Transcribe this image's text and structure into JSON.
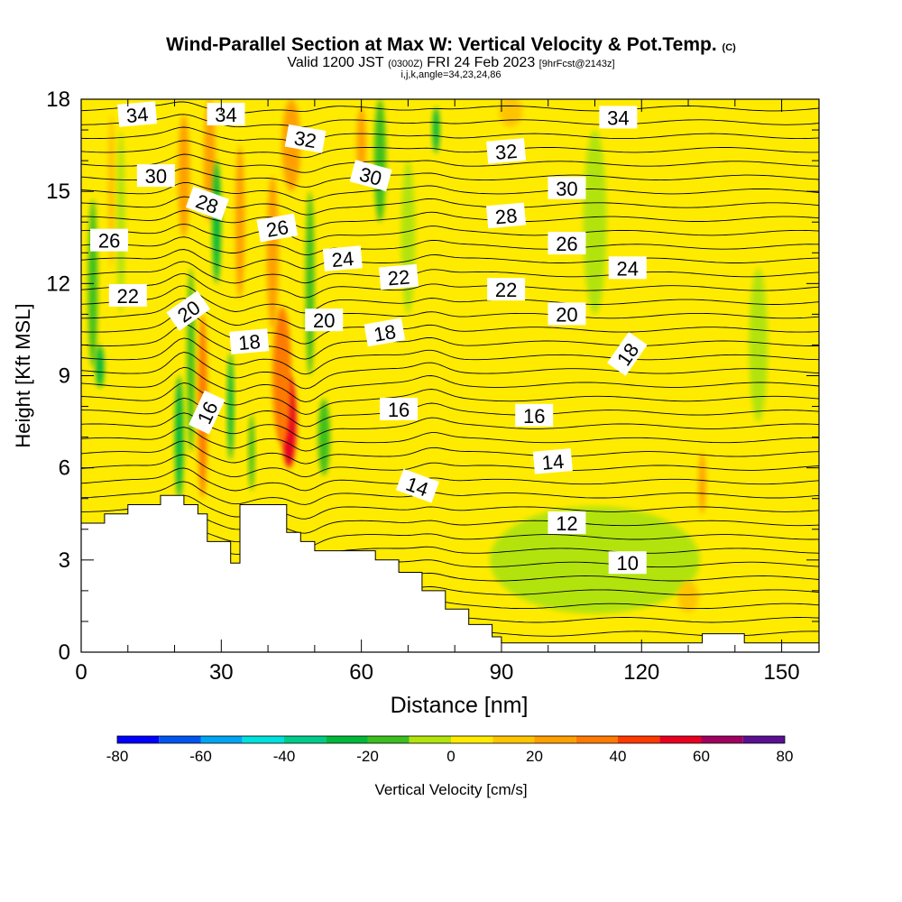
{
  "header": {
    "title": "Wind-Parallel Section at Max W: Vertical Velocity & Pot.Temp.",
    "title_mark": "(C)",
    "valid_prefix": "Valid 1200 JST",
    "valid_utc": "(0300Z)",
    "valid_date": "FRI 24 Feb 2023",
    "forecast": "[9hrFcst@2143z]",
    "params": "i,j,k,angle=34,23,24,86"
  },
  "chart_data": {
    "type": "heatmap",
    "xlabel": "Distance [nm]",
    "ylabel": "Height [Kft MSL]",
    "xlim": [
      0,
      158
    ],
    "ylim": [
      0,
      18
    ],
    "x_ticks": [
      0,
      30,
      60,
      90,
      120,
      150
    ],
    "y_ticks": [
      0,
      3,
      6,
      9,
      12,
      15,
      18
    ],
    "grid": false,
    "colorbar": {
      "label": "Vertical Velocity [cm/s]",
      "placement": "bottom",
      "ticks": [
        -80,
        -60,
        -40,
        -20,
        0,
        20,
        40,
        60,
        80
      ],
      "levels": [
        -80,
        -70,
        -60,
        -50,
        -40,
        -30,
        -20,
        -10,
        0,
        10,
        20,
        30,
        40,
        50,
        60,
        70,
        80
      ],
      "colors": [
        "#0000ff",
        "#0055ee",
        "#00a5f2",
        "#00e0dc",
        "#00cc8a",
        "#00b83a",
        "#3cbf1f",
        "#b2e30a",
        "#ffeb00",
        "#ffc400",
        "#ffa000",
        "#ff7a00",
        "#ff3a00",
        "#e80020",
        "#a00060",
        "#5a1090"
      ]
    },
    "terrain_profile_kft": {
      "x": [
        0,
        3,
        5,
        8,
        10,
        13,
        17,
        20,
        22,
        25,
        27,
        30,
        32,
        34,
        38,
        42,
        44,
        47,
        50,
        53,
        58,
        63,
        68,
        73,
        78,
        83,
        88,
        90,
        100,
        110,
        120,
        132,
        133,
        136,
        138,
        142,
        150,
        158
      ],
      "y": [
        4.2,
        4.2,
        4.5,
        4.5,
        4.8,
        4.8,
        5.1,
        5.1,
        4.8,
        4.5,
        3.6,
        3.6,
        2.9,
        4.8,
        4.8,
        4.8,
        3.9,
        3.6,
        3.3,
        3.3,
        3.3,
        3.0,
        2.6,
        2.0,
        1.4,
        0.9,
        0.5,
        0.3,
        0.3,
        0.3,
        0.3,
        0.3,
        0.6,
        0.6,
        0.6,
        0.3,
        0.3,
        0.3
      ]
    },
    "vertical_velocity_features": [
      {
        "x": 2.5,
        "y": 12.0,
        "w": 2.0,
        "h": 5.5,
        "value": -20
      },
      {
        "x": 4.0,
        "y": 9.3,
        "w": 1.8,
        "h": 1.4,
        "value": -30
      },
      {
        "x": 6.5,
        "y": 15.0,
        "w": 1.5,
        "h": 5.0,
        "value": 10
      },
      {
        "x": 8.5,
        "y": 14.0,
        "w": 1.7,
        "h": 6.0,
        "value": -10
      },
      {
        "x": 14.0,
        "y": 14.0,
        "w": 3.0,
        "h": 8.0,
        "value": 5
      },
      {
        "x": 21.0,
        "y": 7.0,
        "w": 1.8,
        "h": 4.0,
        "value": -30
      },
      {
        "x": 23.5,
        "y": 9.5,
        "w": 1.6,
        "h": 6.0,
        "value": -20
      },
      {
        "x": 26.0,
        "y": 8.0,
        "w": 2.0,
        "h": 6.0,
        "value": 30
      },
      {
        "x": 22.0,
        "y": 15.5,
        "w": 2.5,
        "h": 4.0,
        "value": 20
      },
      {
        "x": 27.5,
        "y": 16.0,
        "w": 2.5,
        "h": 4.0,
        "value": 25
      },
      {
        "x": 29.0,
        "y": 14.0,
        "w": 1.8,
        "h": 4.0,
        "value": -30
      },
      {
        "x": 32.0,
        "y": 8.0,
        "w": 1.3,
        "h": 3.5,
        "value": -25
      },
      {
        "x": 34.0,
        "y": 14.0,
        "w": 2.0,
        "h": 5.0,
        "value": 20
      },
      {
        "x": 36.5,
        "y": 6.5,
        "w": 1.2,
        "h": 2.5,
        "value": -20
      },
      {
        "x": 44.5,
        "y": 7.5,
        "w": 3.2,
        "h": 3.0,
        "value": 50
      },
      {
        "x": 43.0,
        "y": 9.0,
        "w": 4.0,
        "h": 4.5,
        "value": 30
      },
      {
        "x": 41.0,
        "y": 13.0,
        "w": 2.5,
        "h": 5.0,
        "value": 20
      },
      {
        "x": 45.0,
        "y": 16.5,
        "w": 4.0,
        "h": 3.0,
        "value": 25
      },
      {
        "x": 49.0,
        "y": 12.0,
        "w": 1.8,
        "h": 6.0,
        "value": -20
      },
      {
        "x": 52.0,
        "y": 7.0,
        "w": 2.5,
        "h": 2.5,
        "value": -15
      },
      {
        "x": 60.0,
        "y": 16.5,
        "w": 2.0,
        "h": 2.5,
        "value": 20
      },
      {
        "x": 64.0,
        "y": 16.0,
        "w": 2.5,
        "h": 4.0,
        "value": -20
      },
      {
        "x": 76.0,
        "y": 17.0,
        "w": 1.5,
        "h": 1.5,
        "value": -25
      },
      {
        "x": 92.0,
        "y": 17.6,
        "w": 5.0,
        "h": 1.0,
        "value": 15
      },
      {
        "x": 70.0,
        "y": 13.5,
        "w": 3.0,
        "h": 5.0,
        "value": -10
      },
      {
        "x": 110.0,
        "y": 14.0,
        "w": 5.0,
        "h": 6.0,
        "value": -10
      },
      {
        "x": 145.0,
        "y": 10.0,
        "w": 4.0,
        "h": 5.0,
        "value": -10
      },
      {
        "x": 110.0,
        "y": 3.0,
        "w": 45.0,
        "h": 3.5,
        "value": -10
      },
      {
        "x": 130.0,
        "y": 1.8,
        "w": 4.5,
        "h": 1.0,
        "value": 15
      },
      {
        "x": 133.0,
        "y": 5.5,
        "w": 1.5,
        "h": 2.0,
        "value": 20
      }
    ],
    "theta_contour_labels": [
      {
        "x": 12,
        "y": 17.5,
        "text": "34",
        "angle": -5
      },
      {
        "x": 31,
        "y": 17.5,
        "text": "34",
        "angle": 0
      },
      {
        "x": 115,
        "y": 17.4,
        "text": "34",
        "angle": 0
      },
      {
        "x": 48,
        "y": 16.7,
        "text": "32",
        "angle": 10
      },
      {
        "x": 91,
        "y": 16.3,
        "text": "32",
        "angle": -5
      },
      {
        "x": 16,
        "y": 15.5,
        "text": "30",
        "angle": 0
      },
      {
        "x": 62,
        "y": 15.5,
        "text": "30",
        "angle": 15
      },
      {
        "x": 104,
        "y": 15.1,
        "text": "30",
        "angle": 0
      },
      {
        "x": 27,
        "y": 14.6,
        "text": "28",
        "angle": 20
      },
      {
        "x": 91,
        "y": 14.2,
        "text": "28",
        "angle": -5
      },
      {
        "x": 6,
        "y": 13.4,
        "text": "26",
        "angle": 0
      },
      {
        "x": 42,
        "y": 13.8,
        "text": "26",
        "angle": -10
      },
      {
        "x": 104,
        "y": 13.3,
        "text": "26",
        "angle": 0
      },
      {
        "x": 56,
        "y": 12.8,
        "text": "24",
        "angle": -5
      },
      {
        "x": 117,
        "y": 12.5,
        "text": "24",
        "angle": 0
      },
      {
        "x": 10,
        "y": 11.6,
        "text": "22",
        "angle": 0
      },
      {
        "x": 68,
        "y": 12.2,
        "text": "22",
        "angle": -5
      },
      {
        "x": 91,
        "y": 11.8,
        "text": "22",
        "angle": 0
      },
      {
        "x": 23,
        "y": 11.1,
        "text": "20",
        "angle": -35
      },
      {
        "x": 52,
        "y": 10.8,
        "text": "20",
        "angle": 0
      },
      {
        "x": 104,
        "y": 11.0,
        "text": "20",
        "angle": 0
      },
      {
        "x": 36,
        "y": 10.1,
        "text": "18",
        "angle": -5
      },
      {
        "x": 65,
        "y": 10.4,
        "text": "18",
        "angle": -10
      },
      {
        "x": 117,
        "y": 9.7,
        "text": "18",
        "angle": -55
      },
      {
        "x": 27,
        "y": 7.8,
        "text": "16",
        "angle": -65
      },
      {
        "x": 68,
        "y": 7.9,
        "text": "16",
        "angle": 0
      },
      {
        "x": 97,
        "y": 7.7,
        "text": "16",
        "angle": 0
      },
      {
        "x": 72,
        "y": 5.4,
        "text": "14",
        "angle": 20
      },
      {
        "x": 101,
        "y": 6.2,
        "text": "14",
        "angle": -5
      },
      {
        "x": 104,
        "y": 4.2,
        "text": "12",
        "angle": 0
      },
      {
        "x": 117,
        "y": 2.9,
        "text": "10",
        "angle": 0
      }
    ],
    "theta_contour_y_range_kft": {
      "kinks": [
        {
          "x": 22,
          "strength": 0.6
        },
        {
          "x": 33,
          "strength": -0.3
        },
        {
          "x": 48,
          "strength": -0.5
        },
        {
          "x": 75,
          "strength": 0.25
        }
      ]
    }
  }
}
